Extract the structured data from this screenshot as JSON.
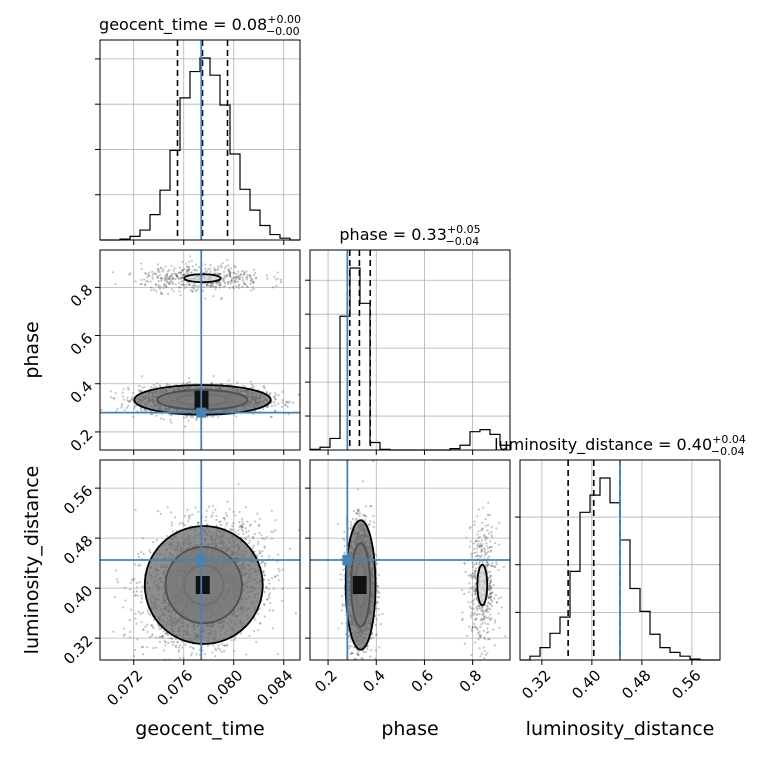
{
  "chart_data": {
    "type": "corner",
    "parameters": [
      "geocent_time",
      "phase",
      "luminosity_distance"
    ],
    "truths": {
      "geocent_time": 0.0774,
      "phase": 0.28,
      "luminosity_distance": 0.445
    },
    "colors": {
      "truth": "#4682b4",
      "hist": "#000000",
      "grid": "#b0b0b0"
    },
    "grid": true,
    "titles": {
      "geocent_time": {
        "name": "geocent_time",
        "median": "0.08",
        "plus": "+0.00",
        "minus": "−0.00"
      },
      "phase": {
        "name": "phase",
        "median": "0.33",
        "plus": "+0.05",
        "minus": "−0.04"
      },
      "luminosity_distance": {
        "name": "luminosity_distance",
        "median": "0.40",
        "plus": "+0.04",
        "minus": "−0.04"
      }
    },
    "ranges": {
      "geocent_time": [
        0.0693,
        0.0853
      ],
      "phase": [
        0.125,
        0.955
      ],
      "luminosity_distance": [
        0.285,
        0.605
      ]
    },
    "ticks": {
      "geocent_time": {
        "values": [
          0.072,
          0.076,
          0.08,
          0.084
        ],
        "labels": [
          "0.072",
          "0.076",
          "0.080",
          "0.084"
        ]
      },
      "phase": {
        "values": [
          0.2,
          0.4,
          0.6,
          0.8
        ],
        "labels": [
          "0.2",
          "0.4",
          "0.6",
          "0.8"
        ]
      },
      "luminosity_distance": {
        "values": [
          0.32,
          0.4,
          0.48,
          0.56
        ],
        "labels": [
          "0.32",
          "0.40",
          "0.48",
          "0.56"
        ]
      }
    },
    "quantiles": {
      "geocent_time": [
        0.0755,
        0.0775,
        0.0795
      ],
      "phase": [
        0.29,
        0.33,
        0.375
      ],
      "luminosity_distance": [
        0.362,
        0.403,
        0.445
      ]
    },
    "histograms": {
      "geocent_time": {
        "bins": [
          0.0693,
          0.0701,
          0.0709,
          0.0717,
          0.0725,
          0.0733,
          0.0741,
          0.0749,
          0.0757,
          0.0765,
          0.0773,
          0.0781,
          0.0789,
          0.0797,
          0.0805,
          0.0813,
          0.0821,
          0.0829,
          0.0837,
          0.0845,
          0.0853
        ],
        "counts": [
          0,
          0,
          1,
          4,
          11,
          28,
          55,
          99,
          157,
          186,
          201,
          182,
          149,
          95,
          56,
          33,
          16,
          6,
          2,
          0
        ]
      },
      "phase": {
        "bins": [
          0.125,
          0.1665,
          0.208,
          0.2495,
          0.291,
          0.3325,
          0.374,
          0.4155,
          0.457,
          0.4985,
          0.54,
          0.5815,
          0.623,
          0.6645,
          0.706,
          0.7475,
          0.789,
          0.8305,
          0.872,
          0.9135,
          0.955
        ],
        "counts": [
          1,
          4,
          17,
          197,
          268,
          216,
          11,
          1,
          0,
          0,
          0,
          0,
          0,
          0,
          2,
          7,
          27,
          30,
          23,
          7
        ]
      },
      "luminosity_distance": {
        "bins": [
          0.285,
          0.301,
          0.317,
          0.333,
          0.349,
          0.365,
          0.381,
          0.397,
          0.413,
          0.429,
          0.445,
          0.461,
          0.477,
          0.493,
          0.509,
          0.525,
          0.541,
          0.557,
          0.573,
          0.589,
          0.605
        ],
        "counts": [
          0,
          4,
          13,
          28,
          45,
          93,
          155,
          173,
          191,
          165,
          126,
          75,
          51,
          27,
          13,
          8,
          4,
          1,
          0,
          0
        ]
      }
    },
    "contours": {
      "phase|geocent_time": {
        "clusters": [
          {
            "mx": 0.0775,
            "my": 0.333,
            "sx": 0.00195,
            "sy": 0.022,
            "rho": 0.0,
            "n": 2400,
            "levels": [
              1.0,
              1.85,
              2.8
            ]
          },
          {
            "mx": 0.0775,
            "my": 0.838,
            "sx": 0.00195,
            "sy": 0.022,
            "rho": 0.0,
            "n": 480,
            "levels": [
              0.75
            ]
          }
        ]
      },
      "luminosity_distance|geocent_time": {
        "clusters": [
          {
            "mx": 0.0776,
            "my": 0.405,
            "sx": 0.00185,
            "sy": 0.037,
            "rho": 0.22,
            "n": 2880,
            "levels": [
              0.85,
              1.65,
              2.55
            ]
          }
        ]
      },
      "luminosity_distance|phase": {
        "clusters": [
          {
            "mx": 0.335,
            "my": 0.405,
            "sx": 0.022,
            "sy": 0.037,
            "rho": 0.0,
            "n": 2400,
            "levels": [
              0.95,
              1.8,
              2.8
            ]
          },
          {
            "mx": 0.84,
            "my": 0.405,
            "sx": 0.024,
            "sy": 0.038,
            "rho": 0.0,
            "n": 480,
            "levels": [
              0.85
            ]
          }
        ]
      }
    }
  }
}
